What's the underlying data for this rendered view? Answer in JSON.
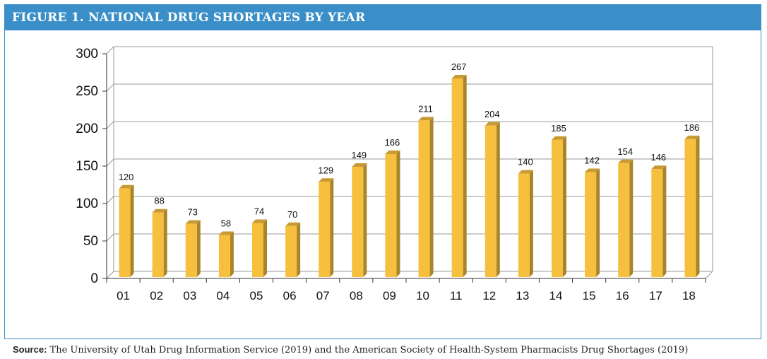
{
  "header": {
    "title": "FIGURE 1. NATIONAL DRUG SHORTAGES BY YEAR"
  },
  "source": {
    "label": "Source:",
    "text": "The University of Utah Drug Information Service (2019) and the American Society of Health-System Pharmacists Drug Shortages (2019)"
  },
  "colors": {
    "frame": "#3b8fc9",
    "bar_front": "#f7bf3e",
    "bar_side": "#a8842a",
    "bar_top": "#c79a33",
    "grid": "#9a9a9a"
  },
  "chart_data": {
    "type": "bar",
    "title": "FIGURE 1. NATIONAL DRUG SHORTAGES BY YEAR",
    "xlabel": "",
    "ylabel": "",
    "categories": [
      "01",
      "02",
      "03",
      "04",
      "05",
      "06",
      "07",
      "08",
      "09",
      "10",
      "11",
      "12",
      "13",
      "14",
      "15",
      "16",
      "17",
      "18"
    ],
    "values": [
      120,
      88,
      73,
      58,
      74,
      70,
      129,
      149,
      166,
      211,
      267,
      204,
      140,
      185,
      142,
      154,
      146,
      186
    ],
    "ylim": [
      0,
      300
    ],
    "yticks": [
      0,
      50,
      100,
      150,
      200,
      250,
      300
    ],
    "grid": true,
    "style": "3d-bar"
  }
}
